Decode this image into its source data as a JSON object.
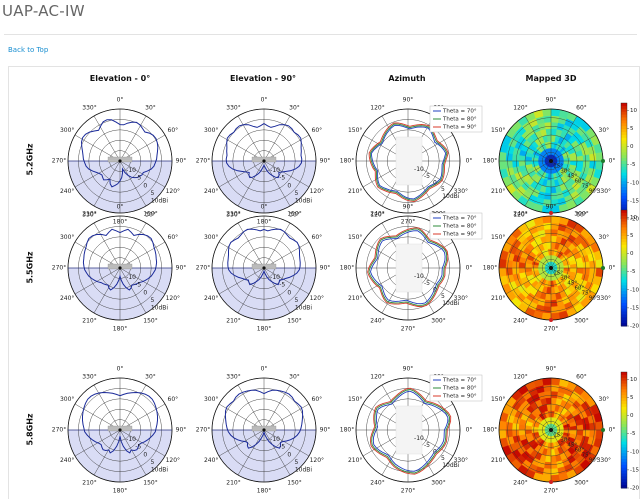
{
  "page": {
    "title": "UAP-AC-IW",
    "back_link": "Back to Top"
  },
  "columns": [
    "Elevation - 0°",
    "Elevation - 90°",
    "Azimuth",
    "Mapped 3D"
  ],
  "rows": [
    "5.2GHz",
    "5.5GHz",
    "5.8GHz"
  ],
  "chart_data": {
    "type": "polar",
    "radial_ticks": [
      "-10",
      "-5",
      "0",
      "5",
      "10dBi"
    ],
    "elevation_angle_labels": [
      "0°",
      "330°",
      "300°",
      "270°",
      "240°",
      "210°",
      "180°",
      "150°",
      "120°",
      "90°",
      "60°",
      "30°"
    ],
    "azimuth_angle_labels": [
      "90°",
      "60°",
      "30°",
      "0°",
      "330°",
      "300°",
      "270°",
      "240°",
      "210°",
      "180°",
      "150°",
      "120°"
    ],
    "mapped_angle_labels": [
      "90°",
      "60°",
      "30°",
      "0°",
      "330°",
      "300°",
      "270°",
      "240°",
      "210°",
      "180°",
      "150°",
      "120°"
    ],
    "mapped_theta_labels": [
      "15°",
      "30°",
      "45°",
      "60°",
      "75°",
      "90°"
    ],
    "azimuth_legend": [
      "Theta = 70°",
      "Theta = 80°",
      "Theta = 90°"
    ],
    "azimuth_colors": [
      "#1f3fbf",
      "#2e8b3a",
      "#d83a2a"
    ],
    "colorbar_ticks": [
      "10",
      "5",
      "0",
      "-5",
      "-10",
      "-15",
      "-20"
    ],
    "colorbar_range": [
      -20,
      12
    ],
    "elevation_series": [
      {
        "row": "5.2GHz",
        "cut": "0°",
        "gain": [
          2.5,
          3.8,
          5.2,
          5.8,
          5.5,
          4.2,
          3.0,
          4.0,
          5.2,
          6.0,
          6.2,
          5.6,
          4.6,
          3.6,
          3.0,
          2.6,
          2.0,
          1.5,
          0.5,
          -1.0,
          -2.5,
          -3.5,
          -4.0,
          -3.5,
          -3.0,
          -4.0,
          -5.0,
          -3.0,
          -2.0,
          -3.0,
          -4.0,
          -5.5,
          -7.0,
          -9.0,
          -11.0,
          -9.0,
          -7.0,
          -5.5,
          -4.5,
          -3.5,
          -3.0,
          -2.5,
          -2.5,
          -1.0,
          0.5,
          1.5,
          2.0,
          2.6,
          3.0,
          3.6,
          4.4,
          5.0,
          5.4,
          5.2,
          4.5,
          3.4,
          4.0,
          4.8,
          5.2,
          4.6,
          3.6,
          2.5
        ]
      },
      {
        "row": "5.2GHz",
        "cut": "90°",
        "gain": [
          3.0,
          2.0,
          1.5,
          2.5,
          4.0,
          5.0,
          5.6,
          5.5,
          5.0,
          5.6,
          5.8,
          5.0,
          4.0,
          3.5,
          3.0,
          3.2,
          3.0,
          2.0,
          0.5,
          -1.5,
          -3.5,
          -5.0,
          -6.0,
          -5.0,
          -4.5,
          -5.5,
          -7.0,
          -8.5,
          -10.0,
          -11.5,
          -12.5,
          -13.0,
          -12.5,
          -11.5,
          -10.0,
          -8.5,
          -7.0,
          -5.5,
          -4.5,
          -5.0,
          -6.0,
          -5.0,
          -3.5,
          -1.5,
          0.5,
          2.0,
          3.0,
          3.2,
          3.0,
          3.5,
          4.0,
          5.0,
          5.8,
          5.6,
          5.0,
          5.5,
          5.6,
          5.0,
          4.0,
          2.5,
          1.5,
          2.0
        ]
      },
      {
        "row": "5.5GHz",
        "cut": "0°",
        "gain": [
          2.0,
          3.0,
          4.0,
          3.0,
          2.0,
          3.5,
          4.6,
          5.4,
          5.6,
          5.0,
          4.2,
          3.8,
          3.4,
          3.0,
          2.8,
          2.4,
          2.0,
          1.2,
          0.5,
          -0.5,
          -1.5,
          -2.5,
          -3.5,
          -4.0,
          -4.5,
          -5.0,
          -4.0,
          -3.5,
          -5.0,
          -7.0,
          -9.0,
          -11.0,
          -9.0,
          -7.0,
          -5.0,
          -3.5,
          -4.0,
          -5.0,
          -4.5,
          -4.0,
          -3.5,
          -2.5,
          -1.5,
          -0.5,
          0.5,
          1.2,
          2.0,
          2.4,
          2.8,
          3.0,
          3.4,
          3.8,
          4.2,
          5.0,
          5.6,
          5.4,
          4.6,
          3.5,
          2.0,
          3.0,
          4.0,
          3.0
        ]
      },
      {
        "row": "5.5GHz",
        "cut": "90°",
        "gain": [
          3.5,
          3.0,
          3.8,
          4.6,
          5.2,
          5.0,
          4.4,
          4.0,
          4.6,
          5.2,
          4.8,
          4.0,
          3.2,
          2.8,
          2.6,
          2.4,
          2.0,
          1.0,
          -0.5,
          -2.0,
          -3.5,
          -4.5,
          -5.5,
          -5.0,
          -4.5,
          -6.0,
          -7.5,
          -9.0,
          -10.5,
          -12.0,
          -13.0,
          -13.5,
          -13.0,
          -12.0,
          -10.5,
          -9.0,
          -7.5,
          -6.0,
          -4.5,
          -5.0,
          -5.5,
          -4.5,
          -3.5,
          -2.0,
          -0.5,
          1.0,
          2.0,
          2.4,
          2.6,
          2.8,
          3.2,
          4.0,
          4.8,
          5.2,
          4.6,
          4.0,
          4.4,
          5.0,
          5.2,
          4.6,
          3.8,
          3.0
        ]
      },
      {
        "row": "5.8GHz",
        "cut": "0°",
        "gain": [
          1.5,
          2.2,
          3.0,
          3.8,
          4.6,
          5.4,
          6.0,
          6.4,
          6.4,
          6.0,
          5.4,
          4.8,
          4.2,
          3.6,
          3.0,
          2.4,
          2.0,
          1.0,
          0.0,
          -1.0,
          -2.0,
          -3.0,
          -3.5,
          -3.0,
          -2.5,
          -3.0,
          -4.0,
          -3.0,
          -4.5,
          -7.0,
          -9.5,
          -12.0,
          -9.5,
          -7.0,
          -4.5,
          -3.0,
          -4.0,
          -3.0,
          -2.5,
          -3.0,
          -3.5,
          -3.0,
          -2.0,
          -1.0,
          0.0,
          1.0,
          2.0,
          2.4,
          3.0,
          3.6,
          4.2,
          4.8,
          5.4,
          6.0,
          6.4,
          6.4,
          6.0,
          5.4,
          4.6,
          3.8,
          3.0,
          2.2
        ]
      },
      {
        "row": "5.8GHz",
        "cut": "90°",
        "gain": [
          2.5,
          3.5,
          4.5,
          5.0,
          5.4,
          5.8,
          6.0,
          5.8,
          5.2,
          5.6,
          6.0,
          5.6,
          4.8,
          4.0,
          3.4,
          2.8,
          2.2,
          1.2,
          0.0,
          -1.5,
          -3.0,
          -4.5,
          -5.0,
          -4.0,
          -3.5,
          -5.0,
          -7.0,
          -9.0,
          -11.0,
          -12.5,
          -13.5,
          -14.0,
          -13.5,
          -12.5,
          -11.0,
          -9.0,
          -7.0,
          -5.0,
          -3.5,
          -4.0,
          -5.0,
          -4.5,
          -3.0,
          -1.5,
          0.0,
          1.2,
          2.2,
          2.8,
          3.4,
          4.0,
          4.8,
          5.6,
          6.0,
          5.6,
          5.2,
          5.8,
          6.0,
          5.8,
          5.4,
          5.0,
          4.5,
          3.5
        ]
      }
    ],
    "azimuth_series": [
      {
        "row": "5.2GHz",
        "theta70": [
          0.5,
          1.2,
          2.0,
          1.5,
          0.8,
          0.0,
          -0.8,
          -0.2,
          0.6,
          1.4,
          2.0,
          1.6,
          1.0,
          0.3,
          -0.5,
          -1.0,
          -0.4,
          0.4,
          1.2,
          1.8,
          1.4,
          0.8,
          0.2,
          -0.4,
          -1.0,
          -1.5,
          -0.8,
          0.0,
          0.8,
          1.5,
          1.0,
          0.5,
          0.0,
          -0.5,
          -1.2,
          -0.6,
          0.2,
          0.9,
          1.5,
          1.0,
          0.4,
          0.0,
          -0.6,
          -1.0,
          -0.5,
          0.3,
          1.0,
          1.6,
          2.0,
          1.4,
          0.8,
          0.2,
          -0.3,
          -0.8,
          -0.4,
          0.2,
          0.8,
          1.2,
          1.0,
          0.6,
          0.2,
          0.0
        ],
        "theta80": [
          1.0,
          1.8,
          2.6,
          2.2,
          1.4,
          0.6,
          0.0,
          0.5,
          1.2,
          2.0,
          2.6,
          2.2,
          1.6,
          0.9,
          0.2,
          -0.4,
          0.2,
          1.0,
          1.8,
          2.4,
          2.0,
          1.4,
          0.8,
          0.2,
          -0.4,
          -0.9,
          -0.2,
          0.6,
          1.4,
          2.0,
          1.6,
          1.1,
          0.6,
          0.1,
          -0.6,
          0.0,
          0.8,
          1.5,
          2.1,
          1.6,
          1.0,
          0.6,
          0.0,
          -0.4,
          0.1,
          0.9,
          1.6,
          2.2,
          2.6,
          2.0,
          1.4,
          0.8,
          0.3,
          -0.2,
          0.2,
          0.8,
          1.4,
          1.8,
          1.6,
          1.2,
          0.8,
          0.6
        ],
        "theta90": [
          1.6,
          2.4,
          3.2,
          2.8,
          2.0,
          1.2,
          0.6,
          1.1,
          1.8,
          2.6,
          3.2,
          2.8,
          2.2,
          1.5,
          0.8,
          0.2,
          0.8,
          1.6,
          2.4,
          3.0,
          2.6,
          2.0,
          1.4,
          0.8,
          0.2,
          -0.3,
          0.4,
          1.2,
          2.0,
          2.6,
          2.2,
          1.7,
          1.2,
          0.7,
          0.0,
          0.6,
          1.4,
          2.1,
          2.7,
          2.2,
          1.6,
          1.2,
          0.6,
          0.2,
          0.7,
          1.5,
          2.2,
          2.8,
          3.2,
          2.6,
          2.0,
          1.4,
          0.9,
          0.4,
          0.8,
          1.4,
          2.0,
          2.4,
          2.2,
          1.8,
          1.4,
          1.2
        ]
      },
      {
        "row": "5.5GHz",
        "theta70": [
          0.0,
          0.8,
          1.6,
          2.2,
          2.6,
          2.2,
          1.4,
          0.6,
          -0.2,
          -0.8,
          -0.2,
          0.6,
          1.4,
          2.0,
          1.6,
          1.0,
          0.4,
          -0.2,
          -0.8,
          -1.4,
          -0.8,
          0.0,
          0.8,
          1.4,
          1.0,
          0.4,
          -0.2,
          -0.8,
          -1.2,
          -0.6,
          0.2,
          1.0,
          1.6,
          1.2,
          0.6,
          0.0,
          -0.6,
          -1.2,
          -0.6,
          0.2,
          1.0,
          1.6,
          1.2,
          0.6,
          0.0,
          -0.6,
          -1.0,
          -0.4,
          0.4,
          1.2,
          1.8,
          2.2,
          1.8,
          1.2,
          0.6,
          0.0,
          -0.4,
          -0.8,
          -0.4,
          0.0,
          0.2,
          0.0
        ],
        "theta80": [
          0.8,
          1.6,
          2.4,
          3.0,
          3.4,
          3.0,
          2.2,
          1.4,
          0.6,
          0.0,
          0.6,
          1.4,
          2.2,
          2.8,
          2.4,
          1.8,
          1.2,
          0.6,
          0.0,
          -0.6,
          0.0,
          0.8,
          1.6,
          2.2,
          1.8,
          1.2,
          0.6,
          0.0,
          -0.4,
          0.2,
          1.0,
          1.8,
          2.4,
          2.0,
          1.4,
          0.8,
          0.2,
          -0.4,
          0.2,
          1.0,
          1.8,
          2.4,
          2.0,
          1.4,
          0.8,
          0.2,
          -0.2,
          0.4,
          1.2,
          2.0,
          2.6,
          3.0,
          2.6,
          2.0,
          1.4,
          0.8,
          0.4,
          0.0,
          0.4,
          0.8,
          1.0,
          0.8
        ],
        "theta90": [
          1.4,
          2.2,
          3.0,
          3.6,
          4.0,
          3.6,
          2.8,
          2.0,
          1.2,
          0.6,
          1.2,
          2.0,
          2.8,
          3.4,
          3.0,
          2.4,
          1.8,
          1.2,
          0.6,
          0.0,
          0.6,
          1.4,
          2.2,
          2.8,
          2.4,
          1.8,
          1.2,
          0.6,
          0.2,
          0.8,
          1.6,
          2.4,
          3.0,
          2.6,
          2.0,
          1.4,
          0.8,
          0.2,
          0.8,
          1.6,
          2.4,
          3.0,
          2.6,
          2.0,
          1.4,
          0.8,
          0.4,
          1.0,
          1.8,
          2.6,
          3.2,
          3.6,
          3.2,
          2.6,
          2.0,
          1.4,
          1.0,
          0.6,
          1.0,
          1.4,
          1.6,
          1.4
        ]
      },
      {
        "row": "5.8GHz",
        "theta70": [
          1.0,
          2.0,
          3.0,
          3.6,
          3.2,
          2.4,
          1.6,
          0.8,
          0.0,
          -0.8,
          -1.4,
          -0.8,
          0.0,
          0.8,
          1.6,
          2.2,
          1.8,
          1.0,
          0.2,
          -0.6,
          -1.2,
          -1.8,
          -1.2,
          -0.4,
          0.4,
          1.0,
          0.6,
          0.0,
          -0.6,
          -1.2,
          -1.8,
          -1.2,
          -0.4,
          0.4,
          1.0,
          1.4,
          1.0,
          0.4,
          -0.2,
          -0.8,
          -1.2,
          -0.6,
          0.2,
          1.0,
          1.6,
          2.2,
          2.8,
          3.2,
          3.6,
          3.2,
          2.6,
          2.0,
          1.4,
          0.8,
          0.4,
          0.0,
          0.4,
          0.8,
          1.2,
          1.4,
          1.2,
          1.0
        ],
        "theta80": [
          1.8,
          2.8,
          3.8,
          4.4,
          4.0,
          3.2,
          2.4,
          1.6,
          0.8,
          0.0,
          -0.6,
          0.0,
          0.8,
          1.6,
          2.4,
          3.0,
          2.6,
          1.8,
          1.0,
          0.2,
          -0.4,
          -1.0,
          -0.4,
          0.4,
          1.2,
          1.8,
          1.4,
          0.8,
          0.2,
          -0.4,
          -1.0,
          -0.4,
          0.4,
          1.2,
          1.8,
          2.2,
          1.8,
          1.2,
          0.6,
          0.0,
          -0.4,
          0.2,
          1.0,
          1.8,
          2.4,
          3.0,
          3.6,
          4.0,
          4.4,
          4.0,
          3.4,
          2.8,
          2.2,
          1.6,
          1.2,
          0.8,
          1.2,
          1.6,
          2.0,
          2.2,
          2.0,
          1.8
        ],
        "theta90": [
          2.4,
          3.4,
          4.4,
          5.0,
          4.6,
          3.8,
          3.0,
          2.2,
          1.4,
          0.6,
          0.0,
          0.6,
          1.4,
          2.2,
          3.0,
          3.6,
          3.2,
          2.4,
          1.6,
          0.8,
          0.2,
          -0.4,
          0.2,
          1.0,
          1.8,
          2.4,
          2.0,
          1.4,
          0.8,
          0.2,
          -0.4,
          0.2,
          1.0,
          1.8,
          2.4,
          2.8,
          2.4,
          1.8,
          1.2,
          0.6,
          0.2,
          0.8,
          1.6,
          2.4,
          3.0,
          3.6,
          4.2,
          4.6,
          5.0,
          4.6,
          4.0,
          3.4,
          2.8,
          2.2,
          1.8,
          1.4,
          1.8,
          2.2,
          2.6,
          2.8,
          2.6,
          2.4
        ]
      }
    ],
    "mapped_level": [
      0.45,
      0.78,
      0.85
    ]
  }
}
